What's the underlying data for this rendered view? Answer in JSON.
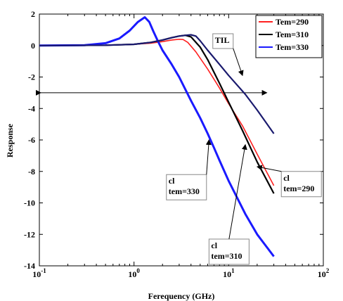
{
  "chart_data": {
    "type": "line",
    "xlabel": "Ferequency (GHz)",
    "ylabel": "Response",
    "x_scale": "log",
    "xlim": [
      0.1,
      100
    ],
    "ylim": [
      -14,
      2
    ],
    "x_ticks": [
      {
        "value": 0.1,
        "base": "10",
        "exp": "-1"
      },
      {
        "value": 1,
        "base": "10",
        "exp": "0"
      },
      {
        "value": 10,
        "base": "10",
        "exp": "1"
      },
      {
        "value": 100,
        "base": "10",
        "exp": "2"
      }
    ],
    "y_ticks": [
      2,
      0,
      -2,
      -4,
      -6,
      -8,
      -10,
      -12,
      -14
    ],
    "grid": false,
    "legend_position": "top-right",
    "series": [
      {
        "name": "Tem=290",
        "color": "#ff2020",
        "points": [
          [
            0.1,
            0
          ],
          [
            0.5,
            0.02
          ],
          [
            1,
            0.08
          ],
          [
            1.5,
            0.15
          ],
          [
            2,
            0.25
          ],
          [
            2.5,
            0.35
          ],
          [
            3,
            0.4
          ],
          [
            3.3,
            0.38
          ],
          [
            3.7,
            0.2
          ],
          [
            4.5,
            -0.4
          ],
          [
            6,
            -1.5
          ],
          [
            8,
            -2.7
          ],
          [
            10,
            -3.7
          ],
          [
            14,
            -5.1
          ],
          [
            20,
            -6.9
          ],
          [
            30,
            -8.9
          ]
        ]
      },
      {
        "name": "Tem=310",
        "color": "#000000",
        "points": [
          [
            0.1,
            0
          ],
          [
            0.5,
            0.02
          ],
          [
            1,
            0.08
          ],
          [
            1.5,
            0.2
          ],
          [
            2,
            0.35
          ],
          [
            2.5,
            0.5
          ],
          [
            3,
            0.6
          ],
          [
            3.5,
            0.65
          ],
          [
            4,
            0.55
          ],
          [
            5,
            -0.1
          ],
          [
            6,
            -0.9
          ],
          [
            8,
            -2.4
          ],
          [
            10,
            -3.6
          ],
          [
            14,
            -5.4
          ],
          [
            20,
            -7.4
          ],
          [
            30,
            -9.4
          ]
        ]
      },
      {
        "name": "Tem=330",
        "color": "#1a1aff",
        "points": [
          [
            0.1,
            0
          ],
          [
            0.3,
            0.02
          ],
          [
            0.5,
            0.15
          ],
          [
            0.7,
            0.45
          ],
          [
            0.9,
            0.95
          ],
          [
            1.1,
            1.5
          ],
          [
            1.3,
            1.8
          ],
          [
            1.45,
            1.5
          ],
          [
            1.6,
            0.9
          ],
          [
            1.8,
            0.25
          ],
          [
            2,
            -0.3
          ],
          [
            2.5,
            -1.2
          ],
          [
            3,
            -2.0
          ],
          [
            4,
            -3.5
          ],
          [
            5,
            -4.6
          ],
          [
            6,
            -5.6
          ],
          [
            7,
            -6.5
          ],
          [
            8,
            -7.3
          ],
          [
            10,
            -8.6
          ],
          [
            15,
            -10.7
          ],
          [
            20,
            -12.0
          ],
          [
            30,
            -13.4
          ]
        ]
      },
      {
        "name": "TIL",
        "color": "#1a1a6e",
        "points": [
          [
            0.1,
            0
          ],
          [
            0.5,
            0.02
          ],
          [
            1,
            0.08
          ],
          [
            1.5,
            0.2
          ],
          [
            2,
            0.35
          ],
          [
            2.5,
            0.5
          ],
          [
            3,
            0.6
          ],
          [
            3.5,
            0.65
          ],
          [
            4,
            0.68
          ],
          [
            4.5,
            0.6
          ],
          [
            5,
            0.3
          ],
          [
            6,
            -0.3
          ],
          [
            8,
            -1.2
          ],
          [
            10,
            -1.9
          ],
          [
            15,
            -3.1
          ],
          [
            20,
            -4.1
          ],
          [
            30,
            -5.6
          ]
        ]
      }
    ],
    "reference_line": {
      "y": -3,
      "x_start": 0.1,
      "x_end": 30
    },
    "legend": [
      {
        "label": "Tem=290",
        "color": "#ff2020"
      },
      {
        "label": "Tem=310",
        "color": "#000000"
      },
      {
        "label": "Tem=330",
        "color": "#1a1aff"
      }
    ],
    "annotations": [
      {
        "label": "TIL",
        "lines": [
          "TIL"
        ],
        "box_at": [
          6.8,
          0.75
        ],
        "arrow_to": [
          14,
          -1.9
        ]
      },
      {
        "label": "cl tem=330",
        "lines": [
          "cl",
          "tem=330"
        ],
        "box_at": [
          2.2,
          -8.2
        ],
        "arrow_to": [
          6.2,
          -6.0
        ]
      },
      {
        "label": "cl tem=290",
        "lines": [
          "cl",
          "tem=290"
        ],
        "box_at": [
          36,
          -8.0
        ],
        "arrow_to": [
          20,
          -7.7
        ]
      },
      {
        "label": "cl tem=310",
        "lines": [
          "cl",
          "tem=310"
        ],
        "box_at": [
          6.2,
          -12.3
        ],
        "arrow_to": [
          15,
          -6.3
        ]
      }
    ]
  }
}
